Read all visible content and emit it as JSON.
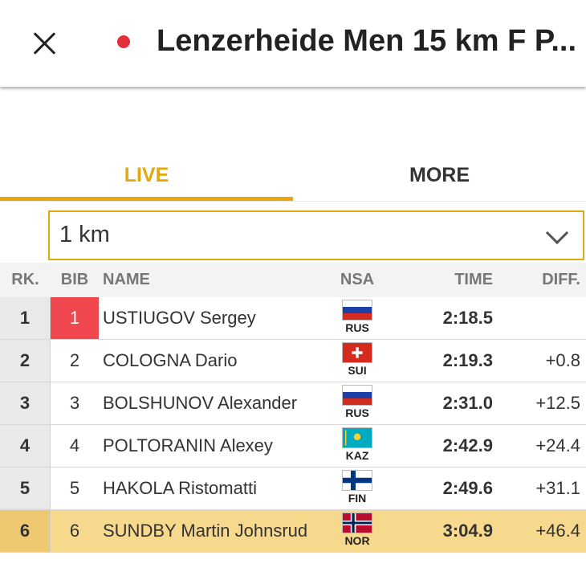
{
  "header": {
    "title": "Lenzerheide Men 15 km F P...",
    "close_icon": "close-icon",
    "live_indicator_color": "#e0303a"
  },
  "tabs": [
    {
      "label": "LIVE",
      "active": true
    },
    {
      "label": "MORE",
      "active": false
    }
  ],
  "split_select": {
    "value": "1 km",
    "icon": "chevron-down-icon"
  },
  "table": {
    "headers": {
      "rank": "RK.",
      "bib": "BIB",
      "name": "NAME",
      "nsa": "NSA",
      "time": "TIME",
      "diff": "DIFF."
    },
    "rows": [
      {
        "rank": "1",
        "bib": "1",
        "name": "USTIUGOV Sergey",
        "nsa": "RUS",
        "time": "2:18.5",
        "diff": ""
      },
      {
        "rank": "2",
        "bib": "2",
        "name": "COLOGNA Dario",
        "nsa": "SUI",
        "time": "2:19.3",
        "diff": "+0.8"
      },
      {
        "rank": "3",
        "bib": "3",
        "name": "BOLSHUNOV Alexander",
        "nsa": "RUS",
        "time": "2:31.0",
        "diff": "+12.5"
      },
      {
        "rank": "4",
        "bib": "4",
        "name": "POLTORANIN Alexey",
        "nsa": "KAZ",
        "time": "2:42.9",
        "diff": "+24.4"
      },
      {
        "rank": "5",
        "bib": "5",
        "name": "HAKOLA Ristomatti",
        "nsa": "FIN",
        "time": "2:49.6",
        "diff": "+31.1"
      },
      {
        "rank": "6",
        "bib": "6",
        "name": "SUNDBY Martin Johnsrud",
        "nsa": "NOR",
        "time": "3:04.9",
        "diff": "+46.4"
      }
    ]
  },
  "colors": {
    "accent": "#e4a80f",
    "leader_bib": "#f0484e",
    "highlight_row": "#f6d98d"
  }
}
